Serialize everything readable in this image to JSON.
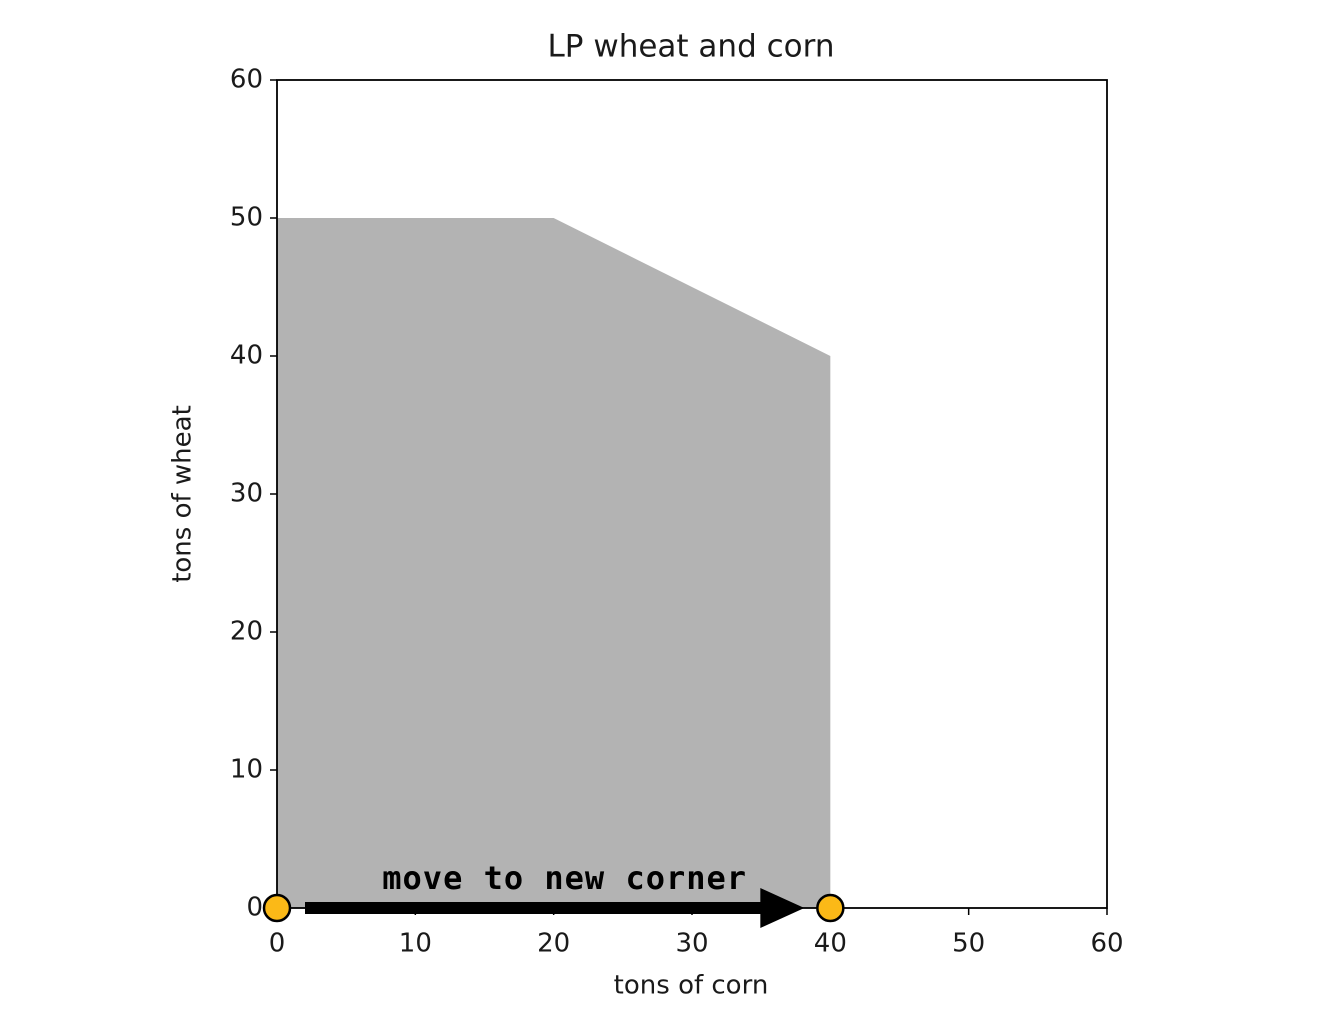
{
  "chart_data": {
    "type": "area",
    "title": "LP wheat and corn",
    "xlabel": "tons of corn",
    "ylabel": "tons of wheat",
    "x": [
      0,
      0,
      20,
      40,
      40
    ],
    "values": [
      0,
      50,
      50,
      40,
      0
    ],
    "color": "#b3b3b3",
    "points": {
      "x": [
        0,
        40
      ],
      "values": [
        0,
        0
      ],
      "color": "#fbb917"
    },
    "annotation": "move to new corner",
    "xlim": [
      0,
      60
    ],
    "ylim": [
      0,
      60
    ],
    "xticks": [
      0,
      10,
      20,
      30,
      40,
      50,
      60
    ],
    "yticks": [
      0,
      10,
      20,
      30,
      40,
      50,
      60
    ]
  }
}
